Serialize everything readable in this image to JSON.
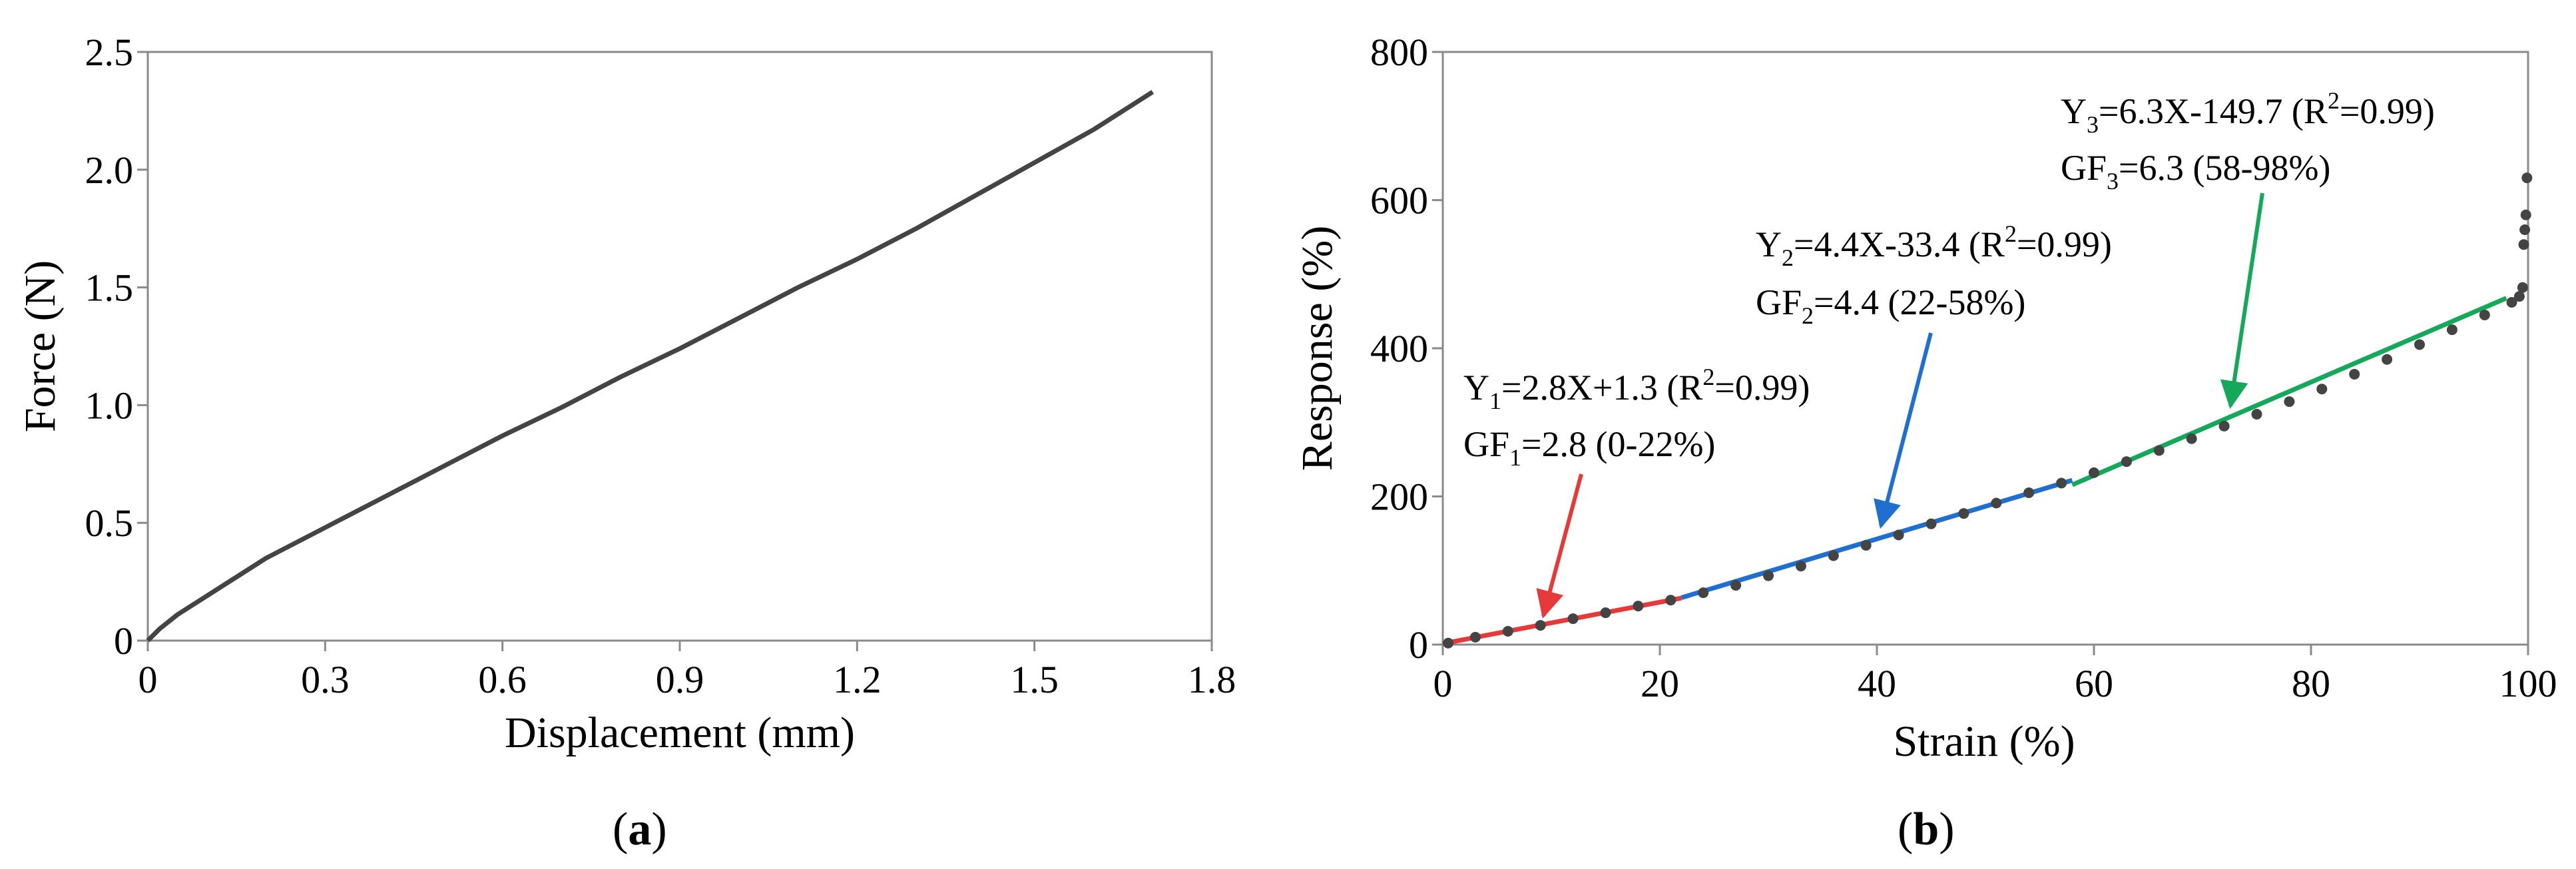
{
  "chart_data": [
    {
      "type": "line",
      "panel_label": "(a)",
      "panel_letter": "a",
      "xlabel": "Displacement (mm)",
      "ylabel": "Force (N)",
      "xlim": [
        0,
        1.8
      ],
      "ylim": [
        0,
        2.5
      ],
      "xticks": [
        "0",
        "0.3",
        "0.6",
        "0.9",
        "1.2",
        "1.5",
        "1.8"
      ],
      "yticks": [
        "0",
        "0.5",
        "1.0",
        "1.5",
        "2.0",
        "2.5"
      ],
      "grid": false,
      "color": "#444444",
      "series": [
        {
          "x": [
            0,
            0.02,
            0.05,
            0.1,
            0.15,
            0.2,
            0.3,
            0.4,
            0.5,
            0.6,
            0.7,
            0.8,
            0.9,
            1.0,
            1.1,
            1.2,
            1.3,
            1.4,
            1.5,
            1.6,
            1.7
          ],
          "y": [
            0,
            0.05,
            0.11,
            0.19,
            0.27,
            0.35,
            0.48,
            0.61,
            0.74,
            0.87,
            0.99,
            1.12,
            1.24,
            1.37,
            1.5,
            1.62,
            1.75,
            1.89,
            2.03,
            2.17,
            2.33
          ]
        }
      ]
    },
    {
      "type": "scatter",
      "panel_label": "(b)",
      "panel_letter": "b",
      "xlabel": "Strain (%)",
      "ylabel": "Response (%)",
      "xlim": [
        0,
        100
      ],
      "ylim": [
        0,
        800
      ],
      "xticks": [
        "0",
        "20",
        "40",
        "60",
        "80",
        "100"
      ],
      "yticks": [
        "0",
        "200",
        "400",
        "600",
        "800"
      ],
      "grid": false,
      "points": {
        "color": "#444444",
        "x": [
          0.5,
          3,
          6,
          9,
          12,
          15,
          18,
          21,
          24,
          27,
          30,
          33,
          36,
          39,
          42,
          45,
          48,
          51,
          54,
          57,
          60,
          63,
          66,
          69,
          72,
          75,
          78,
          81,
          84,
          87,
          90,
          93,
          96,
          98.5,
          99.2,
          99.5,
          99.6,
          99.7,
          99.8,
          99.9
        ],
        "y": [
          2,
          10,
          18,
          26,
          35,
          43,
          52,
          60,
          70,
          80,
          93,
          106,
          120,
          134,
          148,
          163,
          177,
          191,
          205,
          218,
          232,
          247,
          262,
          278,
          295,
          311,
          328,
          345,
          365,
          385,
          405,
          425,
          445,
          462,
          470,
          482,
          540,
          560,
          580,
          630
        ]
      },
      "fits": [
        {
          "name": "Y1",
          "color": "#e8393a",
          "x": [
            0,
            22
          ],
          "y": [
            1.3,
            62.9
          ]
        },
        {
          "name": "Y2",
          "color": "#1f6fd1",
          "x": [
            22,
            58
          ],
          "y": [
            63.4,
            221.8
          ]
        },
        {
          "name": "Y3",
          "color": "#14a85a",
          "x": [
            58,
            98
          ],
          "y": [
            215.7,
            467.7
          ]
        }
      ],
      "annotations": [
        {
          "color": "#e8393a",
          "eq_pre": "Y",
          "eq_sub": "1",
          "eq_mid": "=2.8X+1.3 (R",
          "eq_sup": "2",
          "eq_post": "=0.99)",
          "gf_pre": "GF",
          "gf_sub": "1",
          "gf_post": "=2.8 (0-22%)"
        },
        {
          "color": "#1f6fd1",
          "eq_pre": "Y",
          "eq_sub": "2",
          "eq_mid": "=4.4X-33.4 (R",
          "eq_sup": "2",
          "eq_post": "=0.99)",
          "gf_pre": "GF",
          "gf_sub": "2",
          "gf_post": "=4.4 (22-58%)"
        },
        {
          "color": "#14a85a",
          "eq_pre": "Y",
          "eq_sub": "3",
          "eq_mid": "=6.3X-149.7 (R",
          "eq_sup": "2",
          "eq_post": "=0.99)",
          "gf_pre": "GF",
          "gf_sub": "3",
          "gf_post": "=6.3 (58-98%)"
        }
      ]
    }
  ]
}
